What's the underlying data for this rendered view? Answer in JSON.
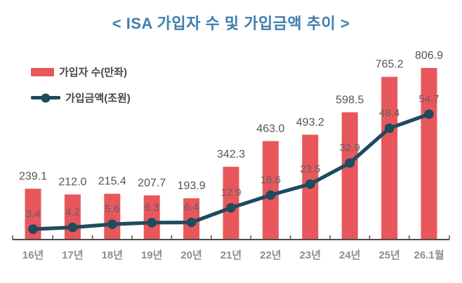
{
  "title": "< ISA 가입자 수 및 가입금액 추이 >",
  "colors": {
    "bar": "#E7575B",
    "line": "#1E4B5E",
    "title": "#3E7FAD",
    "axis": "#4D4D4D",
    "x_label": "#8C8C92",
    "bar_label": "#54545A",
    "line_label": "#5F5F66",
    "legend_text": "#47474D",
    "background": "#FFFFFF"
  },
  "legend": [
    {
      "label": "가입자 수(만좌)",
      "type": "bar"
    },
    {
      "label": "가입금액(조원)",
      "type": "line"
    }
  ],
  "chart_data": {
    "type": "bar",
    "combo": "bar+line",
    "title": "< ISA 가입자 수 및 가입금액 추이 >",
    "categories": [
      "16년",
      "17년",
      "18년",
      "19년",
      "20년",
      "21년",
      "22년",
      "23년",
      "24년",
      "25년",
      "26.1월"
    ],
    "series": [
      {
        "name": "가입자 수(만좌)",
        "type": "bar",
        "axis": "left",
        "values": [
          239.1,
          212.0,
          215.4,
          207.7,
          193.9,
          342.3,
          463.0,
          493.2,
          598.5,
          765.2,
          806.9
        ]
      },
      {
        "name": "가입금액(조원)",
        "type": "line",
        "axis": "right",
        "values": [
          3.4,
          4.2,
          5.6,
          6.3,
          6.4,
          12.9,
          18.6,
          23.5,
          32.9,
          48.4,
          54.7
        ]
      }
    ],
    "xlabel": "",
    "ylabel": "",
    "bar_axis_range": [
      0,
      900
    ],
    "line_axis_range": [
      0,
      85
    ],
    "grid": false,
    "axes_hidden": true,
    "data_labels": true,
    "legend_position": "top-left"
  }
}
